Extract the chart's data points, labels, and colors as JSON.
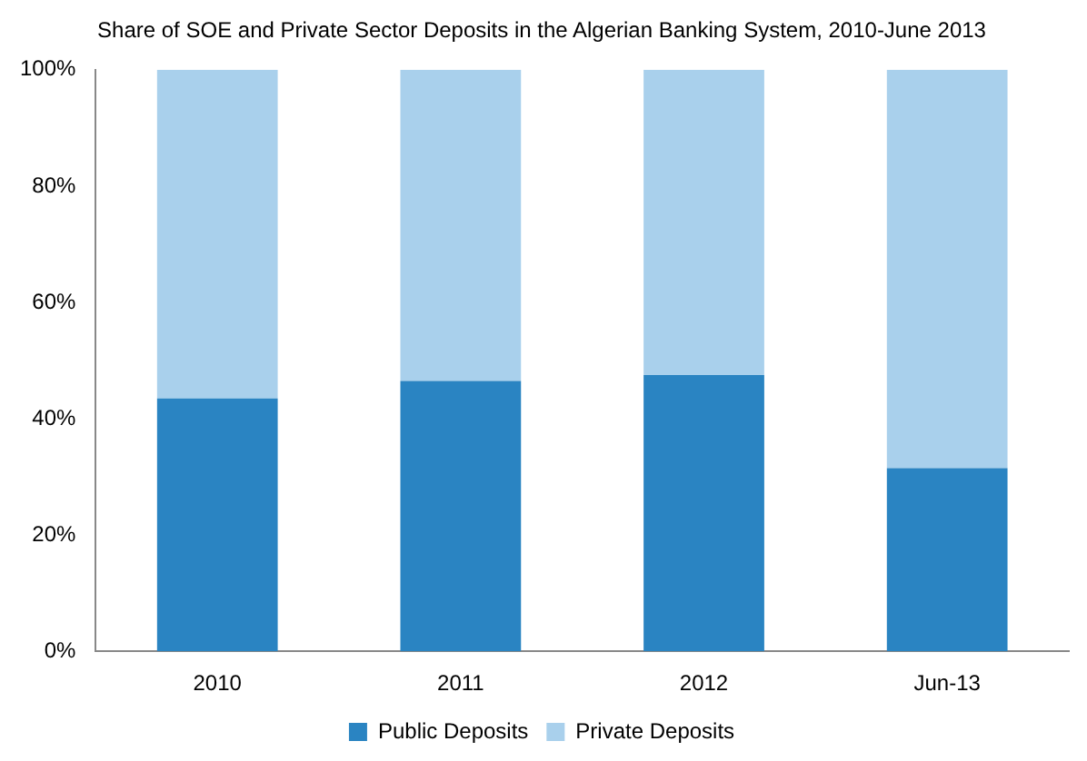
{
  "chart_data": {
    "type": "bar",
    "title": "Share of SOE and Private Sector Deposits in the Algerian Banking System, 2010-June 2013",
    "categories": [
      "2010",
      "2011",
      "2012",
      "Jun-13"
    ],
    "stacked": true,
    "series": [
      {
        "name": "Public Deposits",
        "color": "#2a84c2",
        "values": [
          43.5,
          46.5,
          47.5,
          31.5
        ]
      },
      {
        "name": "Private Deposits",
        "color": "#a9d0ec",
        "values": [
          56.5,
          53.5,
          52.5,
          68.5
        ]
      }
    ],
    "ylim": [
      0,
      100
    ],
    "yticks": [
      {
        "value": 0,
        "label": "0%"
      },
      {
        "value": 20,
        "label": "20%"
      },
      {
        "value": 40,
        "label": "40%"
      },
      {
        "value": 60,
        "label": "60%"
      },
      {
        "value": 80,
        "label": "80%"
      },
      {
        "value": 100,
        "label": "100%"
      }
    ],
    "grid": false,
    "legend": "bottom"
  }
}
